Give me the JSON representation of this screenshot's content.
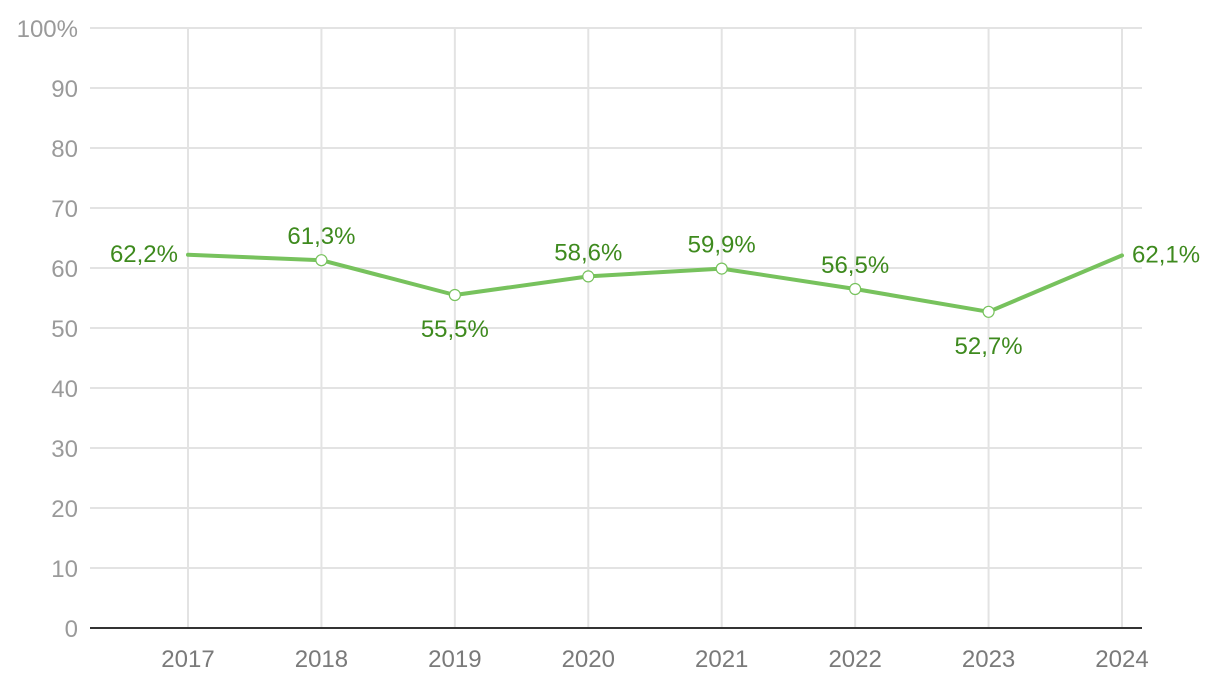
{
  "chart_data": {
    "type": "line",
    "title": "",
    "xlabel": "",
    "ylabel": "",
    "x": [
      "2017",
      "2018",
      "2019",
      "2020",
      "2021",
      "2022",
      "2023",
      "2024"
    ],
    "series": [
      {
        "values": [
          62.2,
          61.3,
          55.5,
          58.6,
          59.9,
          56.5,
          52.7,
          62.1
        ],
        "labels": [
          "62,2%",
          "61,3%",
          "55,5%",
          "58,6%",
          "59,9%",
          "56,5%",
          "52,7%",
          "62,1%"
        ],
        "color": "#77c25d",
        "label_color": "#3e8a1e"
      }
    ],
    "ylim": [
      0,
      100
    ],
    "yticks": [
      {
        "value": 0,
        "label": "0"
      },
      {
        "value": 10,
        "label": "10"
      },
      {
        "value": 20,
        "label": "20"
      },
      {
        "value": 30,
        "label": "30"
      },
      {
        "value": 40,
        "label": "40"
      },
      {
        "value": 50,
        "label": "50"
      },
      {
        "value": 60,
        "label": "60"
      },
      {
        "value": 70,
        "label": "70"
      },
      {
        "value": 80,
        "label": "80"
      },
      {
        "value": 90,
        "label": "90"
      },
      {
        "value": 100,
        "label": "100%"
      }
    ],
    "grid": true,
    "legend": "none"
  }
}
